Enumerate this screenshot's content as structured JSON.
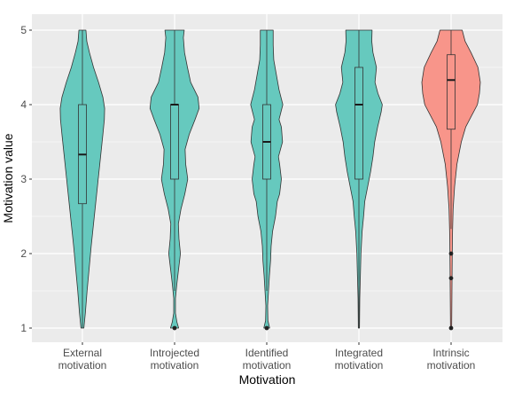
{
  "chart_data": {
    "type": "violin",
    "xlabel": "Motivation",
    "ylabel": "Motivation value",
    "ylim": [
      0.78,
      5.0
    ],
    "yticks": [
      1,
      2,
      3,
      4,
      5
    ],
    "grid": true,
    "legend": "none",
    "colors": {
      "panel_bg": "#EBEBEB",
      "grid": "#FFFFFF",
      "teal": "#66C9BE",
      "salmon": "#F8958A",
      "outline": "#333333",
      "axis_text": "#4D4D4D",
      "title_text": "#000000"
    },
    "categories": [
      {
        "label_line1": "External",
        "label_line2": "motivation",
        "color": "#66C9BE",
        "box": {
          "q1": 2.67,
          "median": 3.33,
          "q3": 4.0,
          "lower": 1.0,
          "upper": 5.0
        },
        "outliers": [],
        "density": [
          [
            1.0,
            0.05
          ],
          [
            1.2,
            0.1
          ],
          [
            1.5,
            0.16
          ],
          [
            1.8,
            0.23
          ],
          [
            2.1,
            0.3
          ],
          [
            2.4,
            0.38
          ],
          [
            2.7,
            0.46
          ],
          [
            3.0,
            0.54
          ],
          [
            3.3,
            0.62
          ],
          [
            3.6,
            0.7
          ],
          [
            3.8,
            0.75
          ],
          [
            3.95,
            0.76
          ],
          [
            4.1,
            0.7
          ],
          [
            4.3,
            0.55
          ],
          [
            4.5,
            0.38
          ],
          [
            4.7,
            0.24
          ],
          [
            4.85,
            0.15
          ],
          [
            5.0,
            0.12
          ]
        ]
      },
      {
        "label_line1": "Introjected",
        "label_line2": "motivation",
        "color": "#66C9BE",
        "box": {
          "q1": 3.0,
          "median": 4.0,
          "q3": 4.0,
          "lower": 1.5,
          "upper": 5.0
        },
        "outliers": [
          1.0
        ],
        "density": [
          [
            1.0,
            0.14
          ],
          [
            1.08,
            0.08
          ],
          [
            1.2,
            0.03
          ],
          [
            1.4,
            0.03
          ],
          [
            1.6,
            0.08
          ],
          [
            1.8,
            0.14
          ],
          [
            2.0,
            0.2
          ],
          [
            2.2,
            0.15
          ],
          [
            2.4,
            0.13
          ],
          [
            2.6,
            0.22
          ],
          [
            2.8,
            0.35
          ],
          [
            3.0,
            0.45
          ],
          [
            3.2,
            0.38
          ],
          [
            3.4,
            0.36
          ],
          [
            3.6,
            0.5
          ],
          [
            3.8,
            0.7
          ],
          [
            3.95,
            0.84
          ],
          [
            4.1,
            0.8
          ],
          [
            4.3,
            0.55
          ],
          [
            4.5,
            0.44
          ],
          [
            4.7,
            0.34
          ],
          [
            4.9,
            0.3
          ],
          [
            5.0,
            0.33
          ]
        ]
      },
      {
        "label_line1": "Identified",
        "label_line2": "motivation",
        "color": "#66C9BE",
        "box": {
          "q1": 3.0,
          "median": 3.5,
          "q3": 4.0,
          "lower": 1.5,
          "upper": 5.0
        },
        "outliers": [
          1.0
        ],
        "density": [
          [
            1.0,
            0.1
          ],
          [
            1.1,
            0.04
          ],
          [
            1.3,
            0.03
          ],
          [
            1.5,
            0.06
          ],
          [
            1.7,
            0.09
          ],
          [
            1.9,
            0.13
          ],
          [
            2.1,
            0.15
          ],
          [
            2.3,
            0.2
          ],
          [
            2.5,
            0.3
          ],
          [
            2.7,
            0.36
          ],
          [
            2.8,
            0.44
          ],
          [
            3.0,
            0.5
          ],
          [
            3.2,
            0.44
          ],
          [
            3.3,
            0.4
          ],
          [
            3.5,
            0.54
          ],
          [
            3.7,
            0.5
          ],
          [
            3.8,
            0.42
          ],
          [
            4.0,
            0.55
          ],
          [
            4.2,
            0.42
          ],
          [
            4.4,
            0.33
          ],
          [
            4.6,
            0.24
          ],
          [
            4.8,
            0.22
          ],
          [
            5.0,
            0.22
          ]
        ]
      },
      {
        "label_line1": "Integrated",
        "label_line2": "motivation",
        "color": "#66C9BE",
        "box": {
          "q1": 3.0,
          "median": 4.0,
          "q3": 4.5,
          "lower": 1.0,
          "upper": 5.0
        },
        "outliers": [],
        "density": [
          [
            1.0,
            0.02
          ],
          [
            1.4,
            0.03
          ],
          [
            1.7,
            0.05
          ],
          [
            2.0,
            0.07
          ],
          [
            2.3,
            0.11
          ],
          [
            2.5,
            0.16
          ],
          [
            2.7,
            0.2
          ],
          [
            2.9,
            0.3
          ],
          [
            3.1,
            0.4
          ],
          [
            3.3,
            0.48
          ],
          [
            3.5,
            0.54
          ],
          [
            3.7,
            0.64
          ],
          [
            3.9,
            0.76
          ],
          [
            4.0,
            0.8
          ],
          [
            4.15,
            0.65
          ],
          [
            4.3,
            0.55
          ],
          [
            4.5,
            0.6
          ],
          [
            4.7,
            0.48
          ],
          [
            4.85,
            0.44
          ],
          [
            5.0,
            0.45
          ]
        ]
      },
      {
        "label_line1": "Intrinsic",
        "label_line2": "motivation",
        "color": "#F8958A",
        "box": {
          "q1": 3.67,
          "median": 4.33,
          "q3": 4.67,
          "lower": 2.33,
          "upper": 5.0
        },
        "outliers": [
          2.0,
          1.67,
          1.0
        ],
        "density": [
          [
            1.0,
            0.02
          ],
          [
            1.5,
            0.03
          ],
          [
            2.0,
            0.04
          ],
          [
            2.3,
            0.05
          ],
          [
            2.6,
            0.07
          ],
          [
            2.9,
            0.12
          ],
          [
            3.2,
            0.2
          ],
          [
            3.5,
            0.35
          ],
          [
            3.7,
            0.5
          ],
          [
            3.85,
            0.7
          ],
          [
            4.0,
            0.9
          ],
          [
            4.15,
            0.97
          ],
          [
            4.3,
            1.0
          ],
          [
            4.5,
            0.92
          ],
          [
            4.7,
            0.68
          ],
          [
            4.85,
            0.48
          ],
          [
            5.0,
            0.38
          ]
        ]
      }
    ]
  }
}
